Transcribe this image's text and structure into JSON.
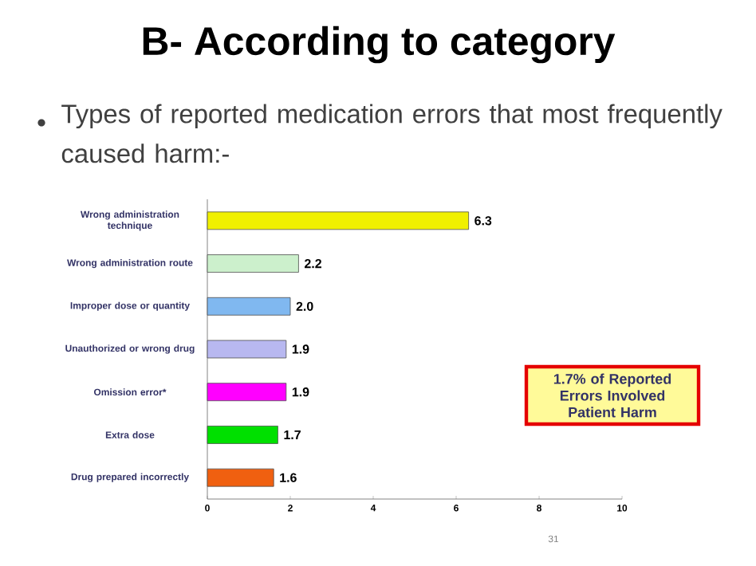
{
  "chart_data": {
    "type": "bar",
    "orientation": "horizontal",
    "title": "B- According to category",
    "subtitle": "Types of reported medication errors that most frequently caused harm:-",
    "categories": [
      "Wrong administration technique",
      "Wrong administration route",
      "Improper dose or quantity",
      "Unauthorized or wrong drug",
      "Omission error*",
      "Extra dose",
      "Drug prepared incorrectly"
    ],
    "values": [
      6.3,
      2.2,
      2.0,
      1.9,
      1.9,
      1.7,
      1.6
    ],
    "value_labels": [
      "6.3",
      "2.2",
      "2.0",
      "1.9",
      "1.9",
      "1.7",
      "1.6"
    ],
    "colors": [
      "#f0f000",
      "#ccf0cc",
      "#80b8f0",
      "#b8b8f0",
      "#ff00ff",
      "#00e000",
      "#f06010"
    ],
    "xlim": [
      0,
      10
    ],
    "xticks": [
      0,
      2,
      4,
      6,
      8,
      10
    ],
    "legend": false,
    "annotations": [
      "1.7% of Reported Errors Involved Patient Harm",
      "31"
    ]
  }
}
